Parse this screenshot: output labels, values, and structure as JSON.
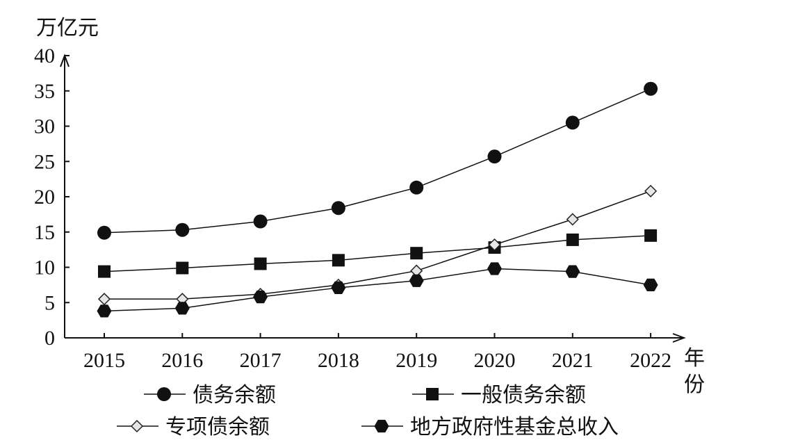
{
  "chart_data": {
    "type": "line",
    "title": "",
    "ylabel": "万亿元",
    "xlabel": "年份",
    "ylim": [
      0,
      40
    ],
    "yticks": [
      "0",
      "5",
      "10",
      "15",
      "20",
      "25",
      "30",
      "35",
      "40"
    ],
    "categories": [
      "2015",
      "2016",
      "2017",
      "2018",
      "2019",
      "2020",
      "2021",
      "2022"
    ],
    "grid": false,
    "legend_position": "bottom",
    "series": [
      {
        "name": "债务余额",
        "marker": "filled-circle",
        "values": [
          14.9,
          15.3,
          16.5,
          18.4,
          21.3,
          25.7,
          30.5,
          35.3
        ]
      },
      {
        "name": "一般债务余额",
        "marker": "filled-square",
        "values": [
          9.4,
          9.9,
          10.5,
          11.0,
          12.0,
          12.8,
          13.9,
          14.5
        ]
      },
      {
        "name": "专项债余额",
        "marker": "open-diamond",
        "values": [
          5.5,
          5.5,
          6.2,
          7.5,
          9.5,
          13.2,
          16.8,
          20.8
        ]
      },
      {
        "name": "地方政府性基金总收入",
        "marker": "filled-hexagon",
        "values": [
          3.8,
          4.2,
          5.8,
          7.1,
          8.1,
          9.8,
          9.4,
          7.5
        ]
      }
    ]
  }
}
